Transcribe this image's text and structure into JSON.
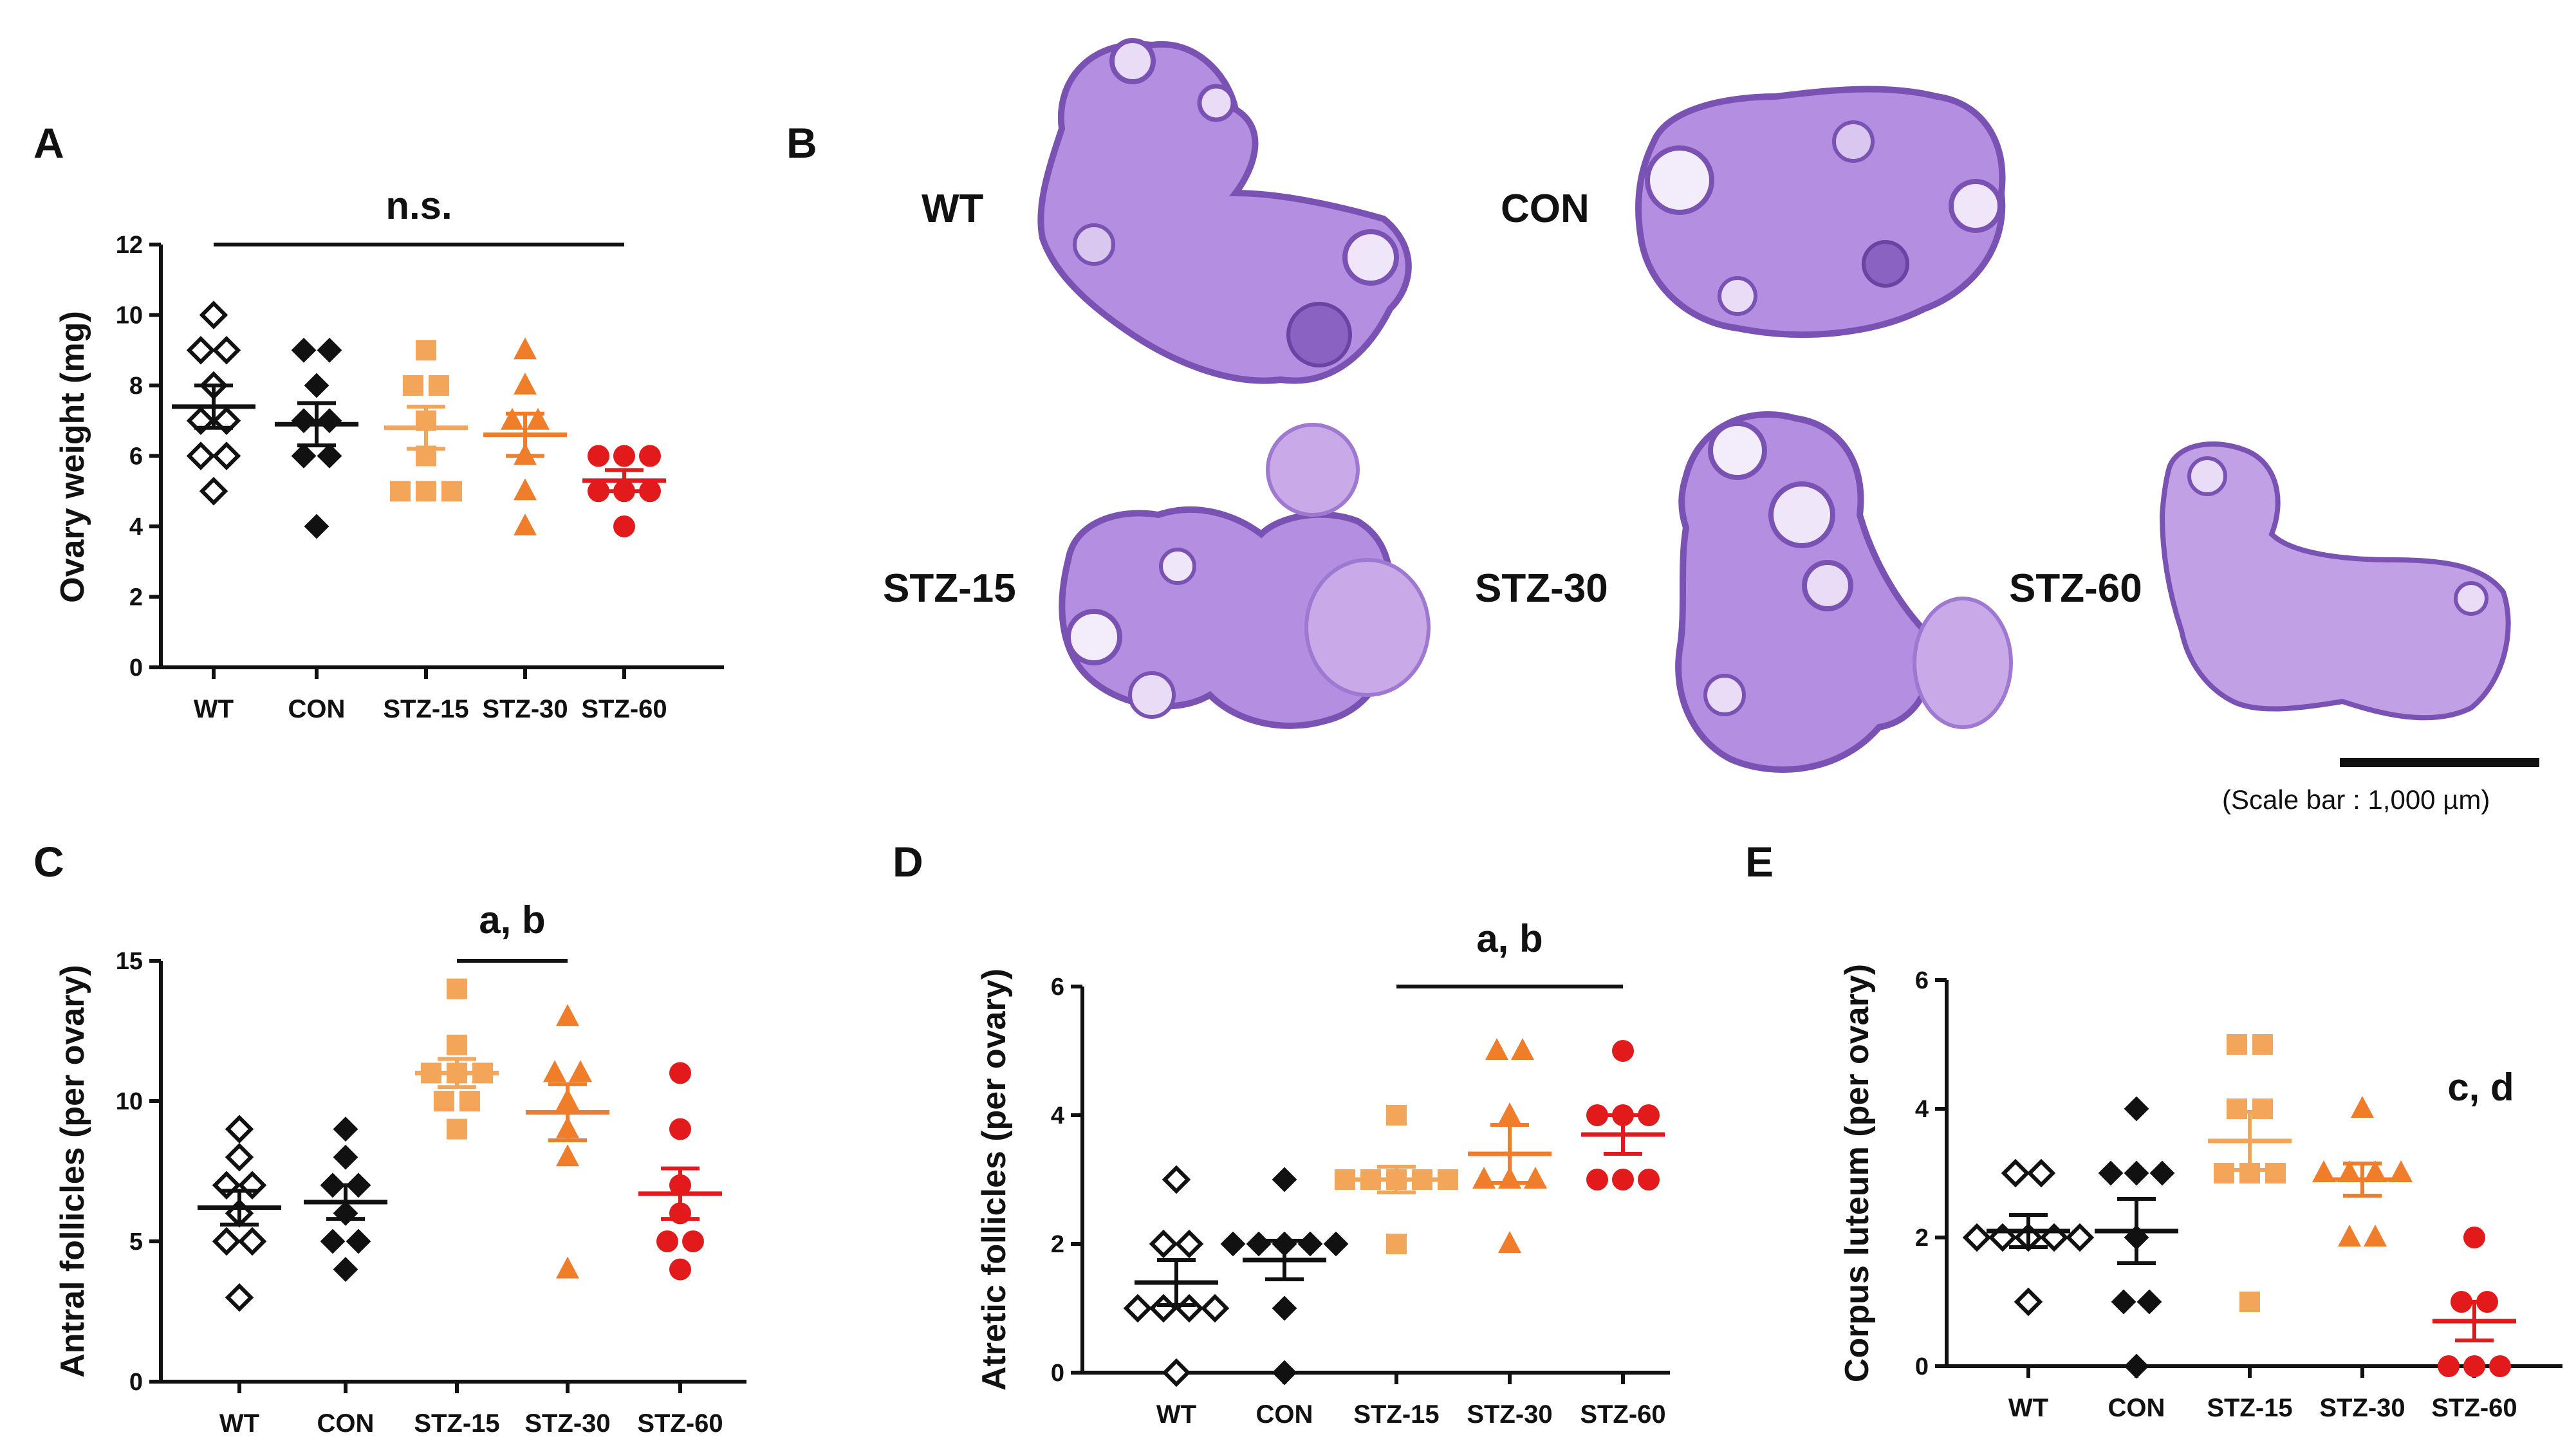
{
  "panel_b": {
    "letter": "B",
    "images": [
      {
        "label": "WT"
      },
      {
        "label": "CON"
      },
      {
        "label": "STZ-15"
      },
      {
        "label": "STZ-30"
      },
      {
        "label": "STZ-60"
      }
    ],
    "scale_bar_label": "(Scale bar : 1,000 µm)"
  },
  "colors": {
    "WT": "#111111",
    "CON": "#111111",
    "STZ-15": "#f3a65a",
    "STZ-30": "#ef7d2a",
    "STZ-60": "#e31a1c",
    "tissue_dark": "#7a52b3",
    "tissue_light": "#b48ee0"
  },
  "chart_data": [
    {
      "panel": "A",
      "type": "scatter",
      "ylabel": "Ovary weight (mg)",
      "categories": [
        "WT",
        "CON",
        "STZ-15",
        "STZ-30",
        "STZ-60"
      ],
      "ylim": [
        0,
        12
      ],
      "yticks": [
        "0",
        "2",
        "4",
        "6",
        "8",
        "10",
        "12"
      ],
      "significance": {
        "label": "n.s.",
        "from": "WT",
        "to": "STZ-60"
      },
      "series": [
        {
          "category": "WT",
          "marker": "diamond-open",
          "points": [
            10,
            9,
            9,
            8,
            7,
            7,
            6,
            6,
            5
          ],
          "mean": 7.4,
          "sem": 0.6
        },
        {
          "category": "CON",
          "marker": "diamond-filled",
          "points": [
            9,
            9,
            8,
            7,
            7,
            6,
            6,
            4
          ],
          "mean": 6.9,
          "sem": 0.6
        },
        {
          "category": "STZ-15",
          "marker": "square",
          "points": [
            9,
            8,
            8,
            7,
            6,
            5,
            5,
            5
          ],
          "mean": 6.8,
          "sem": 0.6
        },
        {
          "category": "STZ-30",
          "marker": "triangle",
          "points": [
            9,
            8,
            7,
            7,
            6,
            5,
            4
          ],
          "mean": 6.6,
          "sem": 0.6
        },
        {
          "category": "STZ-60",
          "marker": "circle",
          "points": [
            6,
            6,
            6,
            5,
            5,
            5,
            4
          ],
          "mean": 5.3,
          "sem": 0.3
        }
      ]
    },
    {
      "panel": "C",
      "type": "scatter",
      "ylabel": "Antral follicles (per ovary)",
      "categories": [
        "WT",
        "CON",
        "STZ-15",
        "STZ-30",
        "STZ-60"
      ],
      "ylim": [
        0,
        15
      ],
      "yticks": [
        "0",
        "5",
        "10",
        "15"
      ],
      "significance": {
        "label": "a, b",
        "from": "STZ-15",
        "to": "STZ-30"
      },
      "series": [
        {
          "category": "WT",
          "marker": "diamond-open",
          "points": [
            9,
            8,
            7,
            7,
            6,
            5,
            5,
            3
          ],
          "mean": 6.2,
          "sem": 0.6
        },
        {
          "category": "CON",
          "marker": "diamond-filled",
          "points": [
            9,
            8,
            7,
            7,
            6,
            5,
            5,
            4
          ],
          "mean": 6.4,
          "sem": 0.6
        },
        {
          "category": "STZ-15",
          "marker": "square",
          "points": [
            14,
            12,
            11,
            11,
            11,
            10,
            10,
            9
          ],
          "mean": 11.0,
          "sem": 0.5
        },
        {
          "category": "STZ-30",
          "marker": "triangle",
          "points": [
            13,
            11,
            11,
            10,
            9,
            8,
            4
          ],
          "mean": 9.6,
          "sem": 1.0
        },
        {
          "category": "STZ-60",
          "marker": "circle",
          "points": [
            11,
            9,
            7,
            6,
            5,
            5,
            4
          ],
          "mean": 6.7,
          "sem": 0.9
        }
      ]
    },
    {
      "panel": "D",
      "type": "scatter",
      "ylabel": "Atretic follicles (per ovary)",
      "categories": [
        "WT",
        "CON",
        "STZ-15",
        "STZ-30",
        "STZ-60"
      ],
      "ylim": [
        0,
        6
      ],
      "yticks": [
        "0",
        "2",
        "4",
        "6"
      ],
      "significance": {
        "label": "a, b",
        "from": "STZ-15",
        "to": "STZ-60"
      },
      "series": [
        {
          "category": "WT",
          "marker": "diamond-open",
          "points": [
            3,
            2,
            2,
            1,
            1,
            1,
            1,
            0
          ],
          "mean": 1.4,
          "sem": 0.35
        },
        {
          "category": "CON",
          "marker": "diamond-filled",
          "points": [
            3,
            2,
            2,
            2,
            2,
            2,
            1,
            0
          ],
          "mean": 1.75,
          "sem": 0.3
        },
        {
          "category": "STZ-15",
          "marker": "square",
          "points": [
            4,
            3,
            3,
            3,
            3,
            3,
            2
          ],
          "mean": 3.0,
          "sem": 0.2
        },
        {
          "category": "STZ-30",
          "marker": "triangle",
          "points": [
            5,
            5,
            4,
            3,
            3,
            3,
            2
          ],
          "mean": 3.4,
          "sem": 0.45
        },
        {
          "category": "STZ-60",
          "marker": "circle",
          "points": [
            5,
            4,
            4,
            4,
            3,
            3,
            3
          ],
          "mean": 3.7,
          "sem": 0.3
        }
      ]
    },
    {
      "panel": "E",
      "type": "scatter",
      "ylabel": "Corpus luteum (per ovary)",
      "categories": [
        "WT",
        "CON",
        "STZ-15",
        "STZ-30",
        "STZ-60"
      ],
      "ylim": [
        0,
        6
      ],
      "yticks": [
        "0",
        "2",
        "4",
        "6"
      ],
      "significance": {
        "label": "c, d"
      },
      "series": [
        {
          "category": "WT",
          "marker": "diamond-open",
          "points": [
            3,
            3,
            2,
            2,
            2,
            2,
            2,
            1
          ],
          "mean": 2.1,
          "sem": 0.25
        },
        {
          "category": "CON",
          "marker": "diamond-filled",
          "points": [
            4,
            3,
            3,
            3,
            2,
            1,
            1,
            0
          ],
          "mean": 2.1,
          "sem": 0.5
        },
        {
          "category": "STZ-15",
          "marker": "square",
          "points": [
            5,
            5,
            4,
            4,
            3,
            3,
            3,
            1
          ],
          "mean": 3.5,
          "sem": 0.45
        },
        {
          "category": "STZ-30",
          "marker": "triangle",
          "points": [
            4,
            3,
            3,
            3,
            3,
            2,
            2
          ],
          "mean": 2.9,
          "sem": 0.25
        },
        {
          "category": "STZ-60",
          "marker": "circle",
          "points": [
            2,
            1,
            1,
            0,
            0,
            0
          ],
          "mean": 0.7,
          "sem": 0.3
        }
      ]
    }
  ]
}
